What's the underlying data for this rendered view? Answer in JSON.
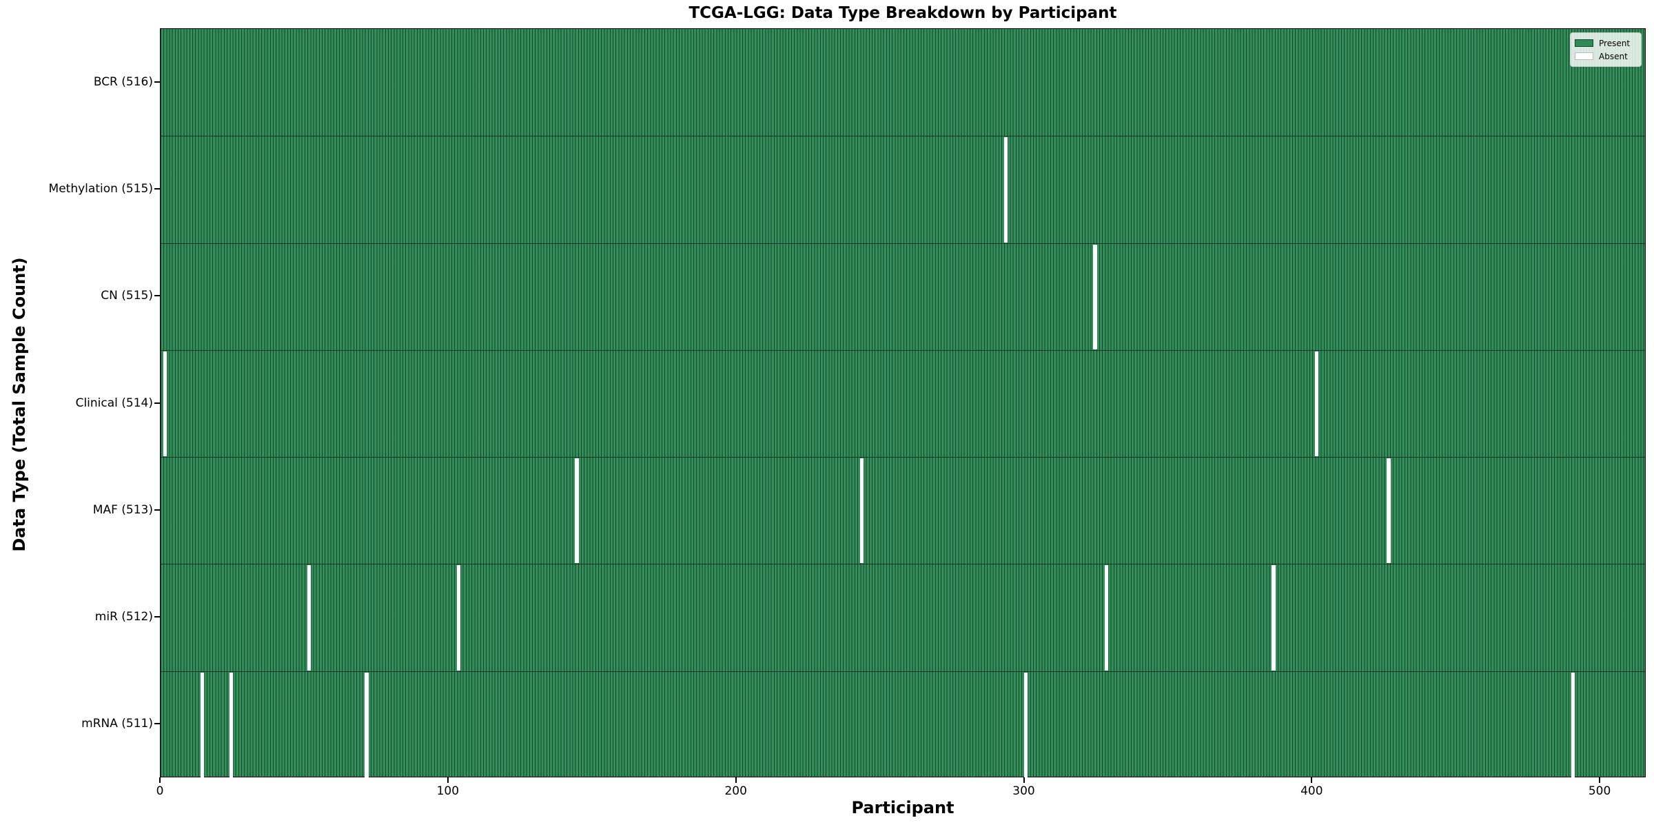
{
  "chart_data": {
    "type": "heatmap",
    "title": "TCGA-LGG: Data Type Breakdown by Participant",
    "xlabel": "Participant",
    "ylabel": "Data Type (Total Sample Count)",
    "n_participants": 516,
    "x_ticks": [
      0,
      100,
      200,
      300,
      400,
      500
    ],
    "xlim": [
      0,
      516
    ],
    "grid": false,
    "legend_position": "upper right",
    "rows": [
      {
        "name": "BCR",
        "count": 516,
        "absent_participants": []
      },
      {
        "name": "Methylation",
        "count": 515,
        "absent_participants": [
          293
        ]
      },
      {
        "name": "CN",
        "count": 515,
        "absent_participants": [
          324
        ]
      },
      {
        "name": "Clinical",
        "count": 514,
        "absent_participants": [
          1,
          401
        ]
      },
      {
        "name": "MAF",
        "count": 513,
        "absent_participants": [
          144,
          243,
          426
        ]
      },
      {
        "name": "miR",
        "count": 512,
        "absent_participants": [
          51,
          103,
          328,
          386
        ]
      },
      {
        "name": "mRNA",
        "count": 511,
        "absent_participants": [
          14,
          24,
          71,
          300,
          490
        ]
      }
    ],
    "colors": {
      "present_fill": "#2e8b57",
      "present_fill_light": "#36915d",
      "bar_edge": "#16452b",
      "absent_fill": "#ffffff",
      "axis": "#000000"
    }
  },
  "legend": {
    "present_label": "Present",
    "absent_label": "Absent"
  }
}
